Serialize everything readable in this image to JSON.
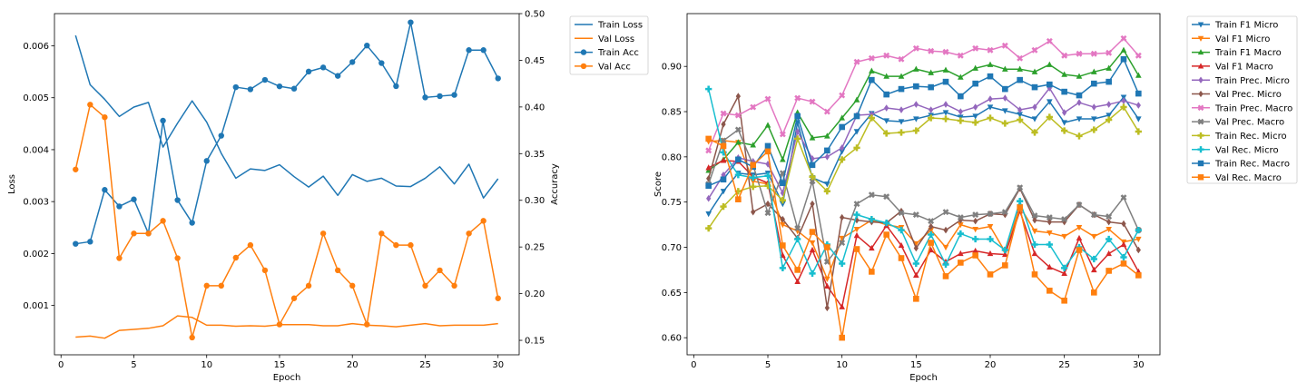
{
  "chart_data": [
    {
      "type": "line",
      "title": "",
      "xlabel": "Epoch",
      "ylabel": "Loss",
      "y2label": "Accuracy",
      "xlim": [
        -0.45,
        31.45
      ],
      "ylim": [
        5e-05,
        0.00662
      ],
      "y2lim": [
        0.1345,
        0.5
      ],
      "xticks": [
        0,
        5,
        10,
        15,
        20,
        25,
        30
      ],
      "yticks": [
        0.001,
        0.002,
        0.003,
        0.004,
        0.005,
        0.006
      ],
      "ytick_labels": [
        "0.001",
        "0.002",
        "0.003",
        "0.004",
        "0.005",
        "0.006"
      ],
      "y2ticks": [
        0.15,
        0.2,
        0.25,
        0.3,
        0.35,
        0.4,
        0.45,
        0.5
      ],
      "y2tick_labels": [
        "0.15",
        "0.20",
        "0.25",
        "0.30",
        "0.35",
        "0.40",
        "0.45",
        "0.50"
      ],
      "grid": false,
      "legend_placement": "outside-right-top",
      "x": [
        1,
        2,
        3,
        4,
        5,
        6,
        7,
        8,
        9,
        10,
        11,
        12,
        13,
        14,
        15,
        16,
        17,
        18,
        19,
        20,
        21,
        22,
        23,
        24,
        25,
        26,
        27,
        28,
        29,
        30
      ],
      "series": [
        {
          "name": "Train Loss",
          "axis": "left",
          "color": "#1f77b4",
          "marker": "none",
          "values": [
            0.0062,
            0.00525,
            0.00497,
            0.00464,
            0.00482,
            0.00491,
            0.00405,
            0.00451,
            0.00494,
            0.00453,
            0.00393,
            0.00345,
            0.00363,
            0.0036,
            0.00371,
            0.00348,
            0.00328,
            0.00349,
            0.00312,
            0.00352,
            0.00339,
            0.00345,
            0.0033,
            0.00329,
            0.00345,
            0.00367,
            0.00334,
            0.00372,
            0.00307,
            0.00344
          ]
        },
        {
          "name": "Val Loss",
          "axis": "left",
          "color": "#ff7f0e",
          "marker": "none",
          "values": [
            0.00039,
            0.00041,
            0.00037,
            0.00052,
            0.00054,
            0.00056,
            0.00061,
            0.0008,
            0.00077,
            0.00062,
            0.00062,
            0.0006,
            0.00061,
            0.0006,
            0.00063,
            0.00063,
            0.00063,
            0.00061,
            0.00061,
            0.00065,
            0.00062,
            0.00061,
            0.00059,
            0.00062,
            0.00065,
            0.00061,
            0.00062,
            0.00062,
            0.00062,
            0.00065
          ]
        },
        {
          "name": "Train Acc",
          "axis": "right",
          "color": "#1f77b4",
          "marker": "circle",
          "values": [
            0.2534,
            0.2557,
            0.3112,
            0.2935,
            0.301,
            0.2645,
            0.3853,
            0.3002,
            0.2759,
            0.3422,
            0.3692,
            0.4212,
            0.4189,
            0.429,
            0.4221,
            0.4196,
            0.4379,
            0.4423,
            0.4333,
            0.4481,
            0.4658,
            0.447,
            0.4223,
            0.4906,
            0.4102,
            0.4116,
            0.4129,
            0.4609,
            0.4609,
            0.4306
          ]
        },
        {
          "name": "Val Acc",
          "axis": "right",
          "color": "#ff7f0e",
          "marker": "circle",
          "values": [
            0.333,
            0.4025,
            0.389,
            0.238,
            0.2645,
            0.2645,
            0.278,
            0.238,
            0.153,
            0.2085,
            0.2085,
            0.2385,
            0.252,
            0.225,
            0.167,
            0.195,
            0.2085,
            0.2645,
            0.225,
            0.2085,
            0.167,
            0.2645,
            0.252,
            0.252,
            0.2085,
            0.225,
            0.2085,
            0.2645,
            0.278,
            0.195
          ]
        }
      ]
    },
    {
      "type": "line",
      "title": "",
      "xlabel": "Epoch",
      "ylabel": "Score",
      "xlim": [
        -0.45,
        31.45
      ],
      "ylim": [
        0.5811,
        0.9584
      ],
      "xticks": [
        0,
        5,
        10,
        15,
        20,
        25,
        30
      ],
      "yticks": [
        0.6,
        0.65,
        0.7,
        0.75,
        0.8,
        0.85,
        0.9
      ],
      "ytick_labels": [
        "0.60",
        "0.65",
        "0.70",
        "0.75",
        "0.80",
        "0.85",
        "0.90"
      ],
      "grid": false,
      "legend_placement": "outside-right-top",
      "x": [
        1,
        2,
        3,
        4,
        5,
        6,
        7,
        8,
        9,
        10,
        11,
        12,
        13,
        14,
        15,
        16,
        17,
        18,
        19,
        20,
        21,
        22,
        23,
        24,
        25,
        26,
        27,
        28,
        29,
        30
      ],
      "series": [
        {
          "name": "Train F1 Micro",
          "color": "#1f77b4",
          "marker": "tri-down",
          "values": [
            0.737,
            0.762,
            0.782,
            0.78,
            0.782,
            0.748,
            0.838,
            0.777,
            0.77,
            0.806,
            0.828,
            0.848,
            0.84,
            0.839,
            0.842,
            0.846,
            0.849,
            0.844,
            0.845,
            0.855,
            0.851,
            0.847,
            0.842,
            0.861,
            0.838,
            0.842,
            0.842,
            0.846,
            0.866,
            0.842
          ]
        },
        {
          "name": "Val F1 Micro",
          "color": "#ff7f0e",
          "marker": "tri-down",
          "values": [
            0.817,
            0.818,
            0.816,
            0.773,
            0.77,
            0.725,
            0.718,
            0.705,
            0.665,
            0.71,
            0.72,
            0.73,
            0.725,
            0.722,
            0.704,
            0.719,
            0.7,
            0.725,
            0.72,
            0.723,
            0.695,
            0.745,
            0.718,
            0.716,
            0.712,
            0.722,
            0.712,
            0.72,
            0.706,
            0.709
          ]
        },
        {
          "name": "Train F1 Macro",
          "color": "#2ca02c",
          "marker": "tri-up",
          "values": [
            0.785,
            0.797,
            0.816,
            0.813,
            0.835,
            0.797,
            0.849,
            0.821,
            0.823,
            0.843,
            0.863,
            0.895,
            0.889,
            0.889,
            0.897,
            0.893,
            0.896,
            0.888,
            0.898,
            0.902,
            0.897,
            0.897,
            0.894,
            0.902,
            0.891,
            0.889,
            0.894,
            0.898,
            0.918,
            0.89
          ]
        },
        {
          "name": "Val F1 Macro",
          "color": "#d62728",
          "marker": "tri-up",
          "values": [
            0.788,
            0.796,
            0.795,
            0.778,
            0.771,
            0.691,
            0.662,
            0.697,
            0.657,
            0.634,
            0.713,
            0.699,
            0.724,
            0.702,
            0.669,
            0.697,
            0.684,
            0.693,
            0.696,
            0.693,
            0.692,
            0.74,
            0.693,
            0.678,
            0.671,
            0.71,
            0.675,
            0.693,
            0.703,
            0.673
          ]
        },
        {
          "name": "Train Prec. Micro",
          "color": "#9467bd",
          "marker": "diamond",
          "values": [
            0.754,
            0.78,
            0.799,
            0.795,
            0.792,
            0.76,
            0.828,
            0.798,
            0.8,
            0.81,
            0.846,
            0.847,
            0.854,
            0.852,
            0.858,
            0.852,
            0.858,
            0.85,
            0.855,
            0.864,
            0.865,
            0.852,
            0.855,
            0.876,
            0.849,
            0.86,
            0.855,
            0.858,
            0.862,
            0.857
          ]
        },
        {
          "name": "Val Prec. Micro",
          "color": "#8c564b",
          "marker": "diamond",
          "values": [
            0.776,
            0.836,
            0.867,
            0.739,
            0.748,
            0.731,
            0.71,
            0.748,
            0.633,
            0.733,
            0.73,
            0.728,
            0.727,
            0.74,
            0.699,
            0.723,
            0.719,
            0.73,
            0.729,
            0.737,
            0.736,
            0.765,
            0.73,
            0.728,
            0.728,
            0.747,
            0.736,
            0.728,
            0.726,
            0.697
          ]
        },
        {
          "name": "Train Prec. Macro",
          "color": "#e377c2",
          "marker": "x-filled",
          "values": [
            0.807,
            0.848,
            0.846,
            0.855,
            0.864,
            0.825,
            0.865,
            0.861,
            0.85,
            0.868,
            0.905,
            0.909,
            0.912,
            0.908,
            0.92,
            0.917,
            0.916,
            0.912,
            0.92,
            0.918,
            0.923,
            0.909,
            0.918,
            0.928,
            0.912,
            0.914,
            0.914,
            0.915,
            0.931,
            0.912
          ]
        },
        {
          "name": "Val Prec. Macro",
          "color": "#7f7f7f",
          "marker": "x-filled",
          "values": [
            0.77,
            0.818,
            0.83,
            0.791,
            0.738,
            0.782,
            0.721,
            0.773,
            0.684,
            0.705,
            0.748,
            0.758,
            0.756,
            0.738,
            0.736,
            0.729,
            0.739,
            0.733,
            0.736,
            0.737,
            0.739,
            0.766,
            0.735,
            0.733,
            0.731,
            0.747,
            0.736,
            0.734,
            0.755,
            0.719
          ]
        },
        {
          "name": "Train Rec. Micro",
          "color": "#bcbd22",
          "marker": "plus-filled",
          "values": [
            0.721,
            0.745,
            0.762,
            0.767,
            0.768,
            0.752,
            0.82,
            0.778,
            0.762,
            0.797,
            0.81,
            0.843,
            0.826,
            0.827,
            0.829,
            0.843,
            0.842,
            0.84,
            0.838,
            0.843,
            0.837,
            0.841,
            0.827,
            0.844,
            0.829,
            0.823,
            0.83,
            0.841,
            0.855,
            0.828
          ]
        },
        {
          "name": "Val Rec. Micro",
          "color": "#17becf",
          "marker": "plus-filled",
          "values": [
            0.875,
            0.805,
            0.78,
            0.777,
            0.779,
            0.677,
            0.709,
            0.671,
            0.703,
            0.682,
            0.736,
            0.731,
            0.727,
            0.719,
            0.682,
            0.714,
            0.681,
            0.715,
            0.709,
            0.709,
            0.697,
            0.751,
            0.703,
            0.703,
            0.677,
            0.7,
            0.687,
            0.709,
            0.689,
            0.719
          ]
        },
        {
          "name": "Train Rec. Macro",
          "color": "#1f77b4",
          "marker": "square",
          "values": [
            0.768,
            0.775,
            0.797,
            0.789,
            0.812,
            0.771,
            0.845,
            0.791,
            0.807,
            0.833,
            0.845,
            0.885,
            0.869,
            0.875,
            0.878,
            0.877,
            0.883,
            0.867,
            0.881,
            0.889,
            0.875,
            0.885,
            0.877,
            0.88,
            0.872,
            0.868,
            0.881,
            0.883,
            0.908,
            0.87
          ]
        },
        {
          "name": "Val Rec. Macro",
          "color": "#ff7f0e",
          "marker": "square",
          "values": [
            0.82,
            0.812,
            0.753,
            0.791,
            0.806,
            0.702,
            0.675,
            0.717,
            0.7,
            0.6,
            0.698,
            0.673,
            0.714,
            0.688,
            0.643,
            0.705,
            0.668,
            0.683,
            0.691,
            0.67,
            0.68,
            0.744,
            0.67,
            0.652,
            0.641,
            0.697,
            0.65,
            0.674,
            0.682,
            0.669
          ]
        }
      ]
    }
  ]
}
